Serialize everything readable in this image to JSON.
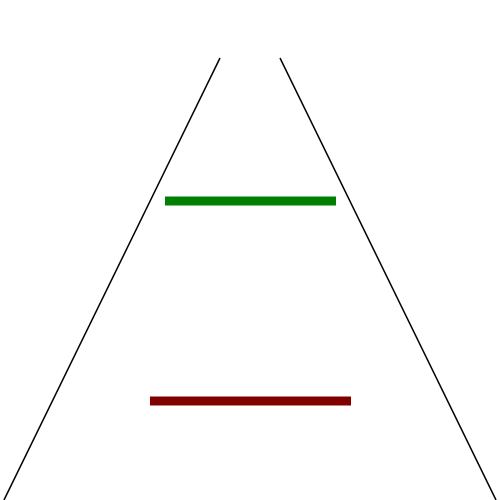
{
  "diagram": {
    "background_color": "#ffffff",
    "guide_line_color": "#000000",
    "segments": [
      {
        "name": "upper-segment",
        "color": "#008000"
      },
      {
        "name": "lower-segment",
        "color": "#800000"
      }
    ]
  }
}
